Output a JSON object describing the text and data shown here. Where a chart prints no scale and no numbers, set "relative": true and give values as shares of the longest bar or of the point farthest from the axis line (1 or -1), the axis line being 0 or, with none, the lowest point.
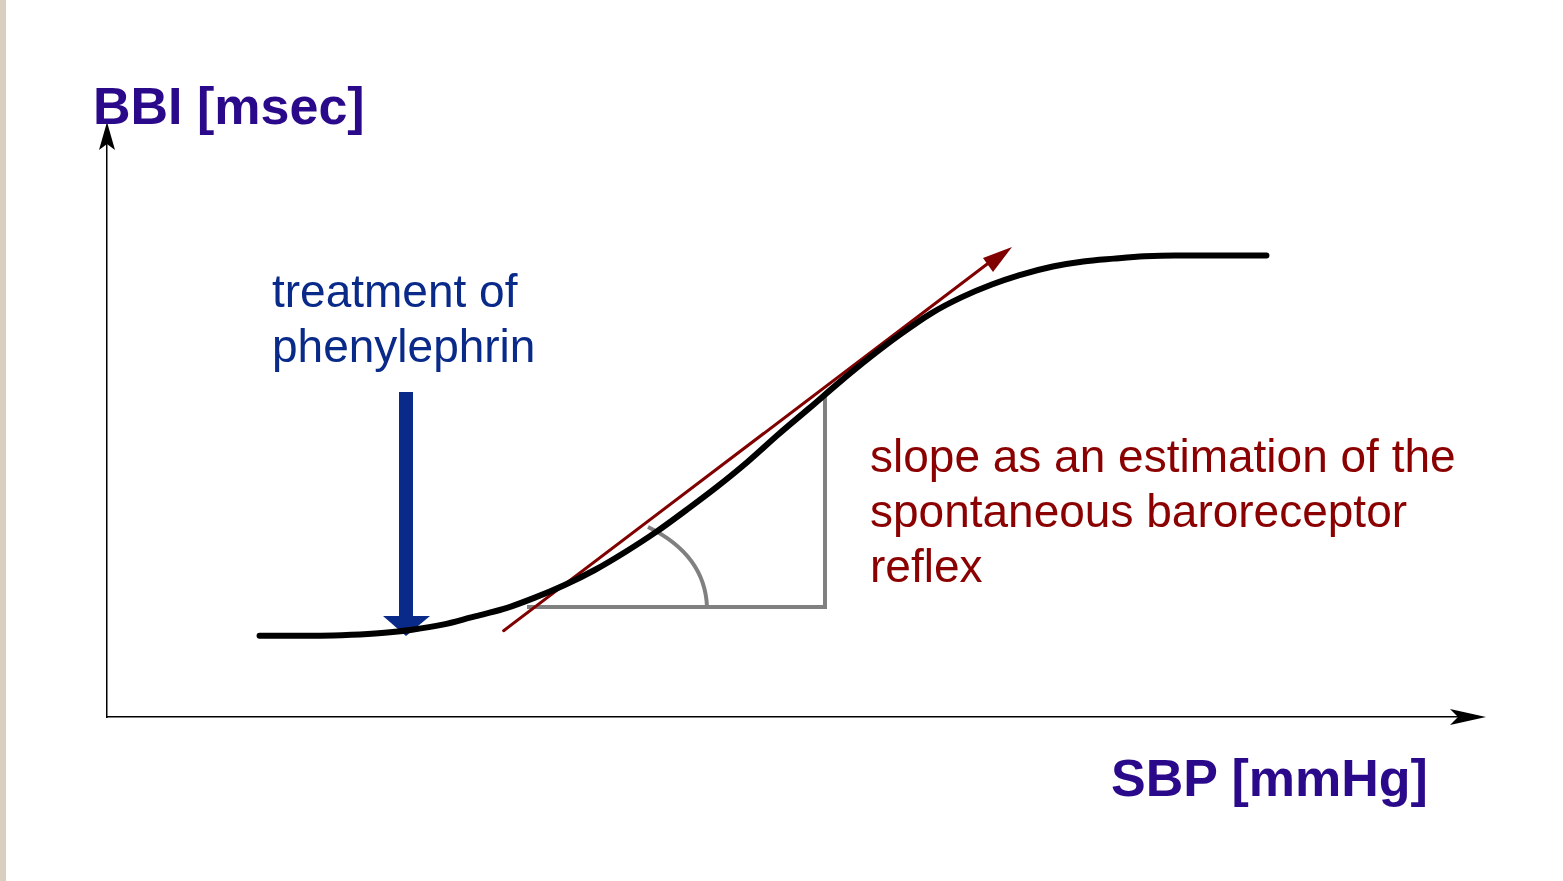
{
  "chart_data": {
    "type": "line",
    "relative": true,
    "xlabel": "SBP [mmHg]",
    "ylabel": "BBI [msec]",
    "categories": [
      null,
      null,
      null,
      null,
      null,
      null,
      null,
      null,
      null,
      null,
      null,
      null,
      null,
      null,
      null,
      null,
      null,
      null,
      null,
      null,
      null,
      null,
      null,
      null,
      null,
      null,
      null,
      null,
      null,
      null,
      null,
      null,
      null,
      null,
      null,
      null,
      null,
      null,
      null,
      null,
      null,
      null,
      null,
      null,
      null,
      null
    ],
    "series": [
      {
        "color": "#000000",
        "values": [
          null,
          null,
          null,
          null,
          null,
          0.176,
          0.176,
          0.176,
          0.178,
          0.182,
          0.189,
          0.2,
          0.217,
          0.234,
          0.258,
          0.286,
          0.319,
          0.358,
          0.401,
          0.449,
          0.499,
          0.553,
          0.612,
          0.668,
          0.725,
          0.779,
          0.829,
          0.874,
          0.909,
          0.937,
          0.959,
          0.976,
          0.987,
          0.993,
          0.998,
          1,
          1,
          1,
          1,
          null,
          null,
          null,
          null,
          null,
          null,
          null
        ]
      },
      {
        "color": "#800000",
        "values": [
          null,
          null,
          null,
          null,
          null,
          null,
          null,
          null,
          null,
          null,
          null,
          null,
          null,
          0.187,
          null,
          null,
          null,
          null,
          null,
          null,
          null,
          null,
          null,
          null,
          null,
          null,
          null,
          null,
          null,
          0.989,
          null,
          null,
          null,
          null,
          null,
          null,
          null,
          null,
          null,
          null,
          null,
          null,
          null,
          null,
          null,
          null
        ]
      }
    ],
    "annotations": [
      "treatment of phenylephrin",
      "slope as an estimation of the spontaneous baroreceptor reflex"
    ],
    "grid": false,
    "legend": false,
    "line_style": "solid"
  }
}
